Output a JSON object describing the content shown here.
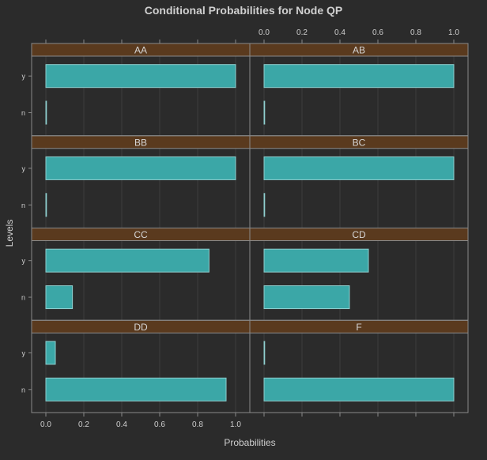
{
  "chart_data": {
    "type": "bar",
    "orientation": "horizontal",
    "title": "Conditional Probabilities for Node QP",
    "xlabel": "Probabilities",
    "ylabel": "Levels",
    "xlim": [
      0,
      1
    ],
    "x_ticks": [
      "0.0",
      "0.2",
      "0.4",
      "0.6",
      "0.8",
      "1.0"
    ],
    "levels": [
      "y",
      "n"
    ],
    "grid": true,
    "panels": [
      {
        "name": "AA",
        "values": {
          "y": 1.0,
          "n": 0.0
        }
      },
      {
        "name": "AB",
        "values": {
          "y": 1.0,
          "n": 0.0
        }
      },
      {
        "name": "BB",
        "values": {
          "y": 1.0,
          "n": 0.0
        }
      },
      {
        "name": "BC",
        "values": {
          "y": 1.0,
          "n": 0.0
        }
      },
      {
        "name": "CC",
        "values": {
          "y": 0.86,
          "n": 0.14
        }
      },
      {
        "name": "CD",
        "values": {
          "y": 0.55,
          "n": 0.45
        }
      },
      {
        "name": "DD",
        "values": {
          "y": 0.05,
          "n": 0.95
        }
      },
      {
        "name": "F",
        "values": {
          "y": 0.0,
          "n": 1.0
        }
      }
    ]
  },
  "colors": {
    "background": "#2b2b2b",
    "bar_fill": "#3ba7a7",
    "bar_stroke": "#8fcfcf",
    "strip_fill": "#5a3a1e",
    "strip_text": "#d6d6d6",
    "frame": "#8a8a8a",
    "grid": "#3c3c3c",
    "text": "#cfcfcf",
    "title": "#d0d0d0"
  }
}
